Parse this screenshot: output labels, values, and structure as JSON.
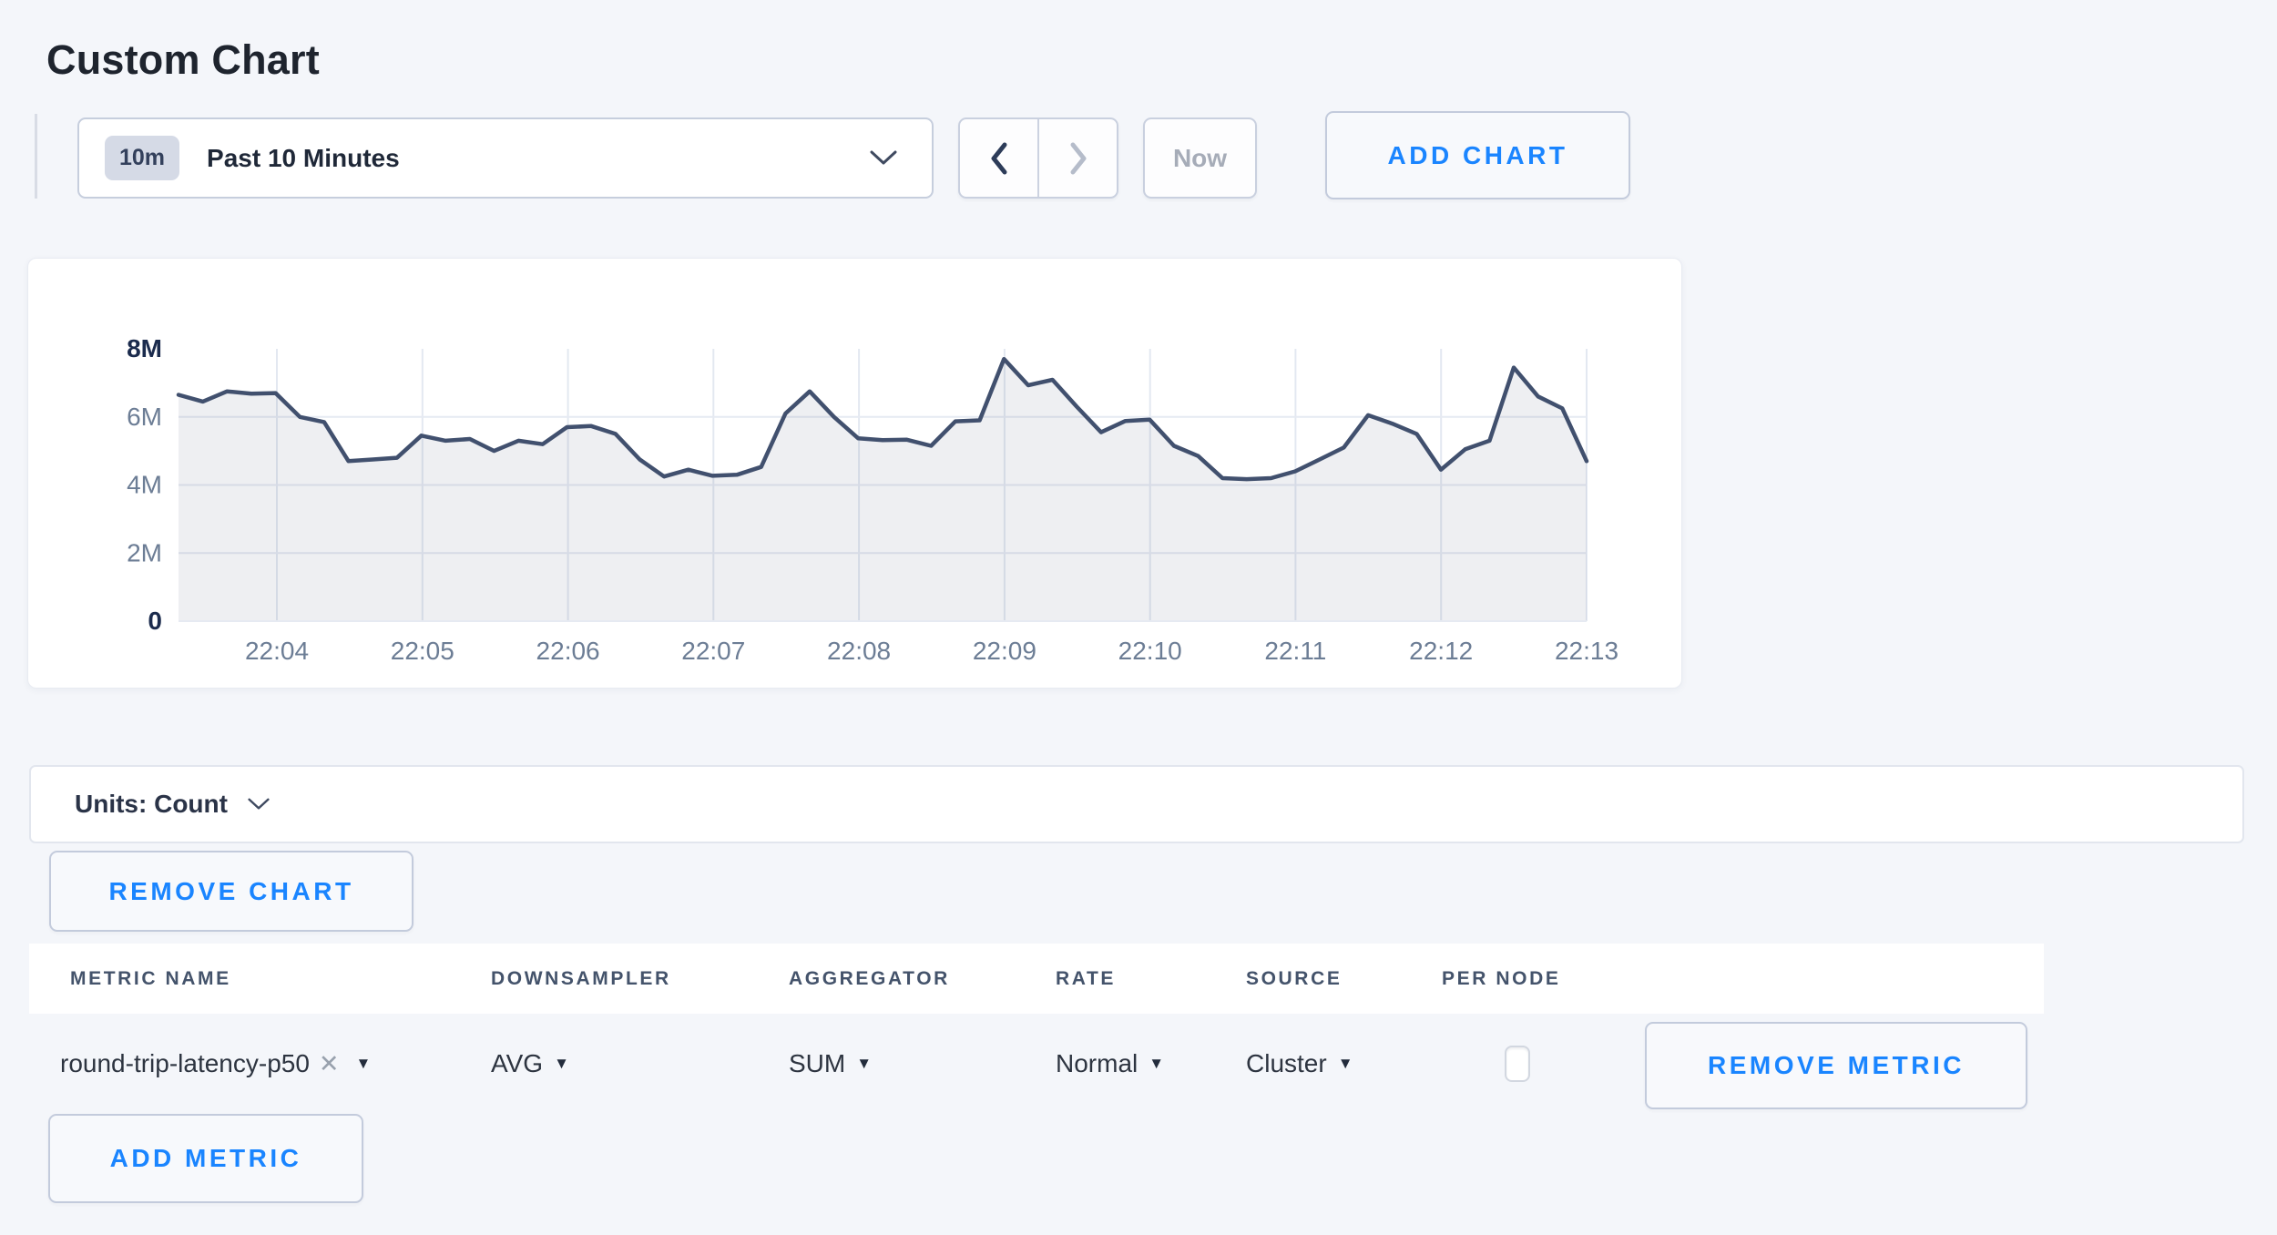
{
  "page": {
    "title": "Custom Chart",
    "background_color": "#f4f6fa",
    "accent_blue": "#1a85ff"
  },
  "icons": {
    "chevron_down": "chevron-down glyph (svg polyline)",
    "chevron_left": "chevron-left glyph (svg polyline)",
    "chevron_right": "chevron-right glyph (svg polyline)",
    "caret_down": "▼",
    "close": "✕"
  },
  "toolbar": {
    "time_range": {
      "badge": "10m",
      "label": "Past 10 Minutes"
    },
    "now_label": "Now",
    "add_chart_label": "ADD CHART"
  },
  "chart_data": {
    "type": "area",
    "title": "",
    "xlabel": "",
    "ylabel": "",
    "unit": "Count",
    "y_ticks": [
      "8M",
      "6M",
      "4M",
      "2M",
      "0"
    ],
    "x_ticks": [
      "22:04",
      "22:05",
      "22:06",
      "22:07",
      "22:08",
      "22:09",
      "22:10",
      "22:11",
      "22:12",
      "22:13"
    ],
    "ylim_millions": [
      0,
      8
    ],
    "grid": true,
    "legend": "none",
    "time_start": "22:03:20",
    "interval_seconds": 10,
    "series": [
      {
        "name": "round-trip-latency-p50",
        "values_millions": [
          6.65,
          6.45,
          6.75,
          6.68,
          6.7,
          6.0,
          5.85,
          4.7,
          4.75,
          4.8,
          5.45,
          5.3,
          5.35,
          5.0,
          5.3,
          5.2,
          5.7,
          5.73,
          5.5,
          4.75,
          4.25,
          4.45,
          4.27,
          4.3,
          4.53,
          6.1,
          6.75,
          6.0,
          5.37,
          5.32,
          5.33,
          5.15,
          5.87,
          5.9,
          7.7,
          6.93,
          7.09,
          6.3,
          5.55,
          5.88,
          5.92,
          5.15,
          4.85,
          4.2,
          4.17,
          4.2,
          4.4,
          4.75,
          5.1,
          6.05,
          5.8,
          5.5,
          4.45,
          5.05,
          5.3,
          7.45,
          6.6,
          6.25,
          4.7
        ]
      }
    ],
    "colors": {
      "line": "#41506e",
      "fill": "rgba(65,80,110,0.09)",
      "grid_vertical": "#e3e8f1",
      "grid_horizontal": "#e6eaf2",
      "tick_label": "#6c7d95",
      "tick_label_bold": "#1b2b4d"
    }
  },
  "units_bar": {
    "label": "Units: Count"
  },
  "chart_actions": {
    "remove_chart_label": "REMOVE CHART"
  },
  "metrics_table": {
    "headers": [
      "METRIC NAME",
      "DOWNSAMPLER",
      "AGGREGATOR",
      "RATE",
      "SOURCE",
      "PER NODE"
    ],
    "rows": [
      {
        "metric_name": "round-trip-latency-p50",
        "downsampler": "AVG",
        "aggregator": "SUM",
        "rate": "Normal",
        "source": "Cluster",
        "per_node_checked": false,
        "remove_label": "REMOVE METRIC"
      }
    ],
    "add_metric_label": "ADD METRIC"
  }
}
